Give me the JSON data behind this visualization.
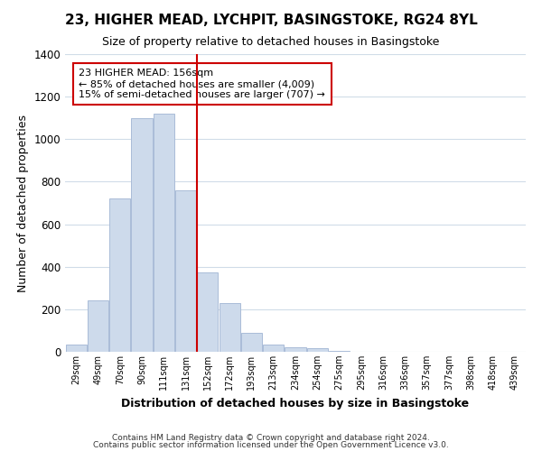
{
  "title": "23, HIGHER MEAD, LYCHPIT, BASINGSTOKE, RG24 8YL",
  "subtitle": "Size of property relative to detached houses in Basingstoke",
  "xlabel": "Distribution of detached houses by size in Basingstoke",
  "ylabel": "Number of detached properties",
  "bar_color": "#cddaeb",
  "bar_edge_color": "#aabcd8",
  "categories": [
    "29sqm",
    "49sqm",
    "70sqm",
    "90sqm",
    "111sqm",
    "131sqm",
    "152sqm",
    "172sqm",
    "193sqm",
    "213sqm",
    "234sqm",
    "254sqm",
    "275sqm",
    "295sqm",
    "316sqm",
    "336sqm",
    "357sqm",
    "377sqm",
    "398sqm",
    "418sqm",
    "439sqm"
  ],
  "values": [
    35,
    240,
    720,
    1100,
    1120,
    760,
    375,
    230,
    90,
    35,
    22,
    15,
    5,
    0,
    0,
    0,
    0,
    0,
    0,
    0,
    0
  ],
  "ylim": [
    0,
    1400
  ],
  "yticks": [
    0,
    200,
    400,
    600,
    800,
    1000,
    1200,
    1400
  ],
  "vline_color": "#cc0000",
  "annotation_title": "23 HIGHER MEAD: 156sqm",
  "annotation_line1": "← 85% of detached houses are smaller (4,009)",
  "annotation_line2": "15% of semi-detached houses are larger (707) →",
  "annotation_box_color": "#ffffff",
  "annotation_box_edge": "#cc0000",
  "footer1": "Contains HM Land Registry data © Crown copyright and database right 2024.",
  "footer2": "Contains public sector information licensed under the Open Government Licence v3.0.",
  "background_color": "#ffffff",
  "grid_color": "#d0dce8"
}
